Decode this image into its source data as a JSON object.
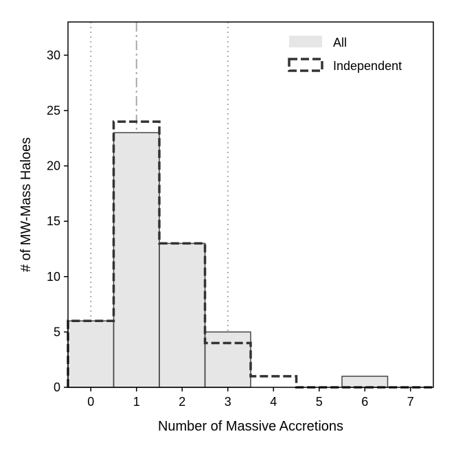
{
  "chart_data": {
    "type": "bar",
    "xlabel": "Number of Massive Accretions",
    "ylabel": "# of MW-Mass Haloes",
    "xlim": [
      -0.5,
      7.5
    ],
    "ylim": [
      0,
      33
    ],
    "xticks": [
      "0",
      "1",
      "2",
      "3",
      "4",
      "5",
      "6",
      "7"
    ],
    "yticks": [
      "0",
      "5",
      "10",
      "15",
      "20",
      "25",
      "30"
    ],
    "categories": [
      0,
      1,
      2,
      3,
      4,
      5,
      6,
      7
    ],
    "series": [
      {
        "name": "All",
        "style": "filled",
        "color": "#e6e6e6",
        "values": [
          6,
          23,
          13,
          5,
          0,
          0,
          1,
          0
        ]
      },
      {
        "name": "Independent",
        "style": "dashed-step",
        "color": "#333333",
        "values": [
          6,
          24,
          13,
          4,
          1,
          0,
          0,
          0
        ]
      }
    ],
    "reference_lines": [
      {
        "x": 0,
        "style": "dotted"
      },
      {
        "x": 1,
        "style": "dash-dot"
      },
      {
        "x": 3,
        "style": "dotted"
      }
    ],
    "legend_position": "top-right",
    "grid": false
  }
}
